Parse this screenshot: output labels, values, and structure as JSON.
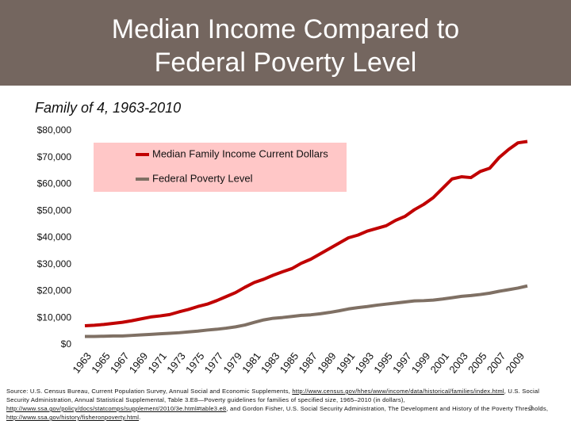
{
  "chart_data": {
    "type": "line",
    "title": "Median Income Compared to Federal Poverty Level",
    "subtitle": "Family of 4, 1963-2010",
    "x": [
      1963,
      1964,
      1965,
      1966,
      1967,
      1968,
      1969,
      1970,
      1971,
      1972,
      1973,
      1974,
      1975,
      1976,
      1977,
      1978,
      1979,
      1980,
      1981,
      1982,
      1983,
      1984,
      1985,
      1986,
      1987,
      1988,
      1989,
      1990,
      1991,
      1992,
      1993,
      1994,
      1995,
      1996,
      1997,
      1998,
      1999,
      2000,
      2001,
      2002,
      2003,
      2004,
      2005,
      2006,
      2007,
      2008,
      2009,
      2010
    ],
    "series": [
      {
        "name": "Median Family Income Current Dollars",
        "color": "#c00000",
        "values": [
          7100,
          7300,
          7600,
          8000,
          8400,
          9000,
          9700,
          10400,
          10800,
          11300,
          12300,
          13200,
          14300,
          15200,
          16500,
          18000,
          19500,
          21500,
          23300,
          24500,
          26000,
          27300,
          28500,
          30500,
          32000,
          34000,
          36000,
          38000,
          40000,
          41000,
          42500,
          43500,
          44500,
          46500,
          48000,
          50500,
          52500,
          55000,
          58500,
          62000,
          62800,
          62500,
          64800,
          66000,
          70000,
          73000,
          75500,
          76000
        ]
      },
      {
        "name": "Federal Poverty Level",
        "color": "#7f7064",
        "values": [
          3100,
          3100,
          3200,
          3300,
          3300,
          3500,
          3700,
          3900,
          4100,
          4300,
          4500,
          4800,
          5100,
          5500,
          5800,
          6200,
          6700,
          7400,
          8400,
          9300,
          9900,
          10200,
          10600,
          11000,
          11200,
          11600,
          12100,
          12700,
          13400,
          13900,
          14300,
          14800,
          15200,
          15600,
          16000,
          16400,
          16500,
          16700,
          17100,
          17600,
          18100,
          18400,
          18800,
          19300,
          20000,
          20600,
          21200,
          22000
        ]
      }
    ],
    "xlim": [
      1963,
      2010
    ],
    "xticks": [
      1963,
      1965,
      1967,
      1969,
      1971,
      1973,
      1975,
      1977,
      1979,
      1981,
      1983,
      1985,
      1987,
      1989,
      1991,
      1993,
      1995,
      1997,
      1999,
      2001,
      2003,
      2005,
      2007,
      2009
    ],
    "ylim": [
      0,
      80000
    ],
    "yticks": [
      {
        "value": 0,
        "label": "$0"
      },
      {
        "value": 10000,
        "label": "$10,000"
      },
      {
        "value": 20000,
        "label": "$20,000"
      },
      {
        "value": 30000,
        "label": "$30,000"
      },
      {
        "value": 40000,
        "label": "$40,000"
      },
      {
        "value": 50000,
        "label": "$50,000"
      },
      {
        "value": 60000,
        "label": "$60,000"
      },
      {
        "value": 70000,
        "label": "$70,000"
      },
      {
        "value": 80000,
        "label": "$80,000"
      }
    ],
    "grid": false,
    "legend": "top-left",
    "footnote": [
      "Source: U.S. Census Bureau, Current Population Survey, Annual Social and Economic Supplements, ",
      "http://www.census.gov/hhes/www/income/data/historical/families/index.html",
      ", U.S. Social Security Administration, Annual Statistical Supplemental, Table 3.E8—Poverty guidelines for families of specified size, 1965–2010 (in dollars), ",
      "http://www.ssa.gov/policy/docs/statcomps/supplement/2010/3e.html#table3.e8",
      ", and Gordon Fisher, U.S. Social Security Administration, The Development and History of the Poverty Thresholds, ",
      "http://www.ssa.gov/history/fisheronpoverty.html",
      "."
    ],
    "slide_number": 3
  }
}
